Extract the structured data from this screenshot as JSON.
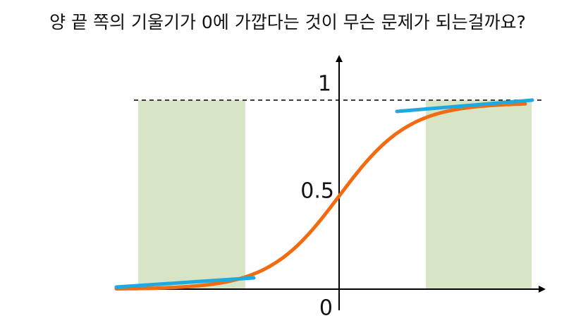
{
  "title": "양 끝 쪽의 기울기가 0에 가깝다는 것이 무슨 문제가 되는걸까요?",
  "y_labels": [
    "1",
    "0.5",
    "0"
  ]
}
